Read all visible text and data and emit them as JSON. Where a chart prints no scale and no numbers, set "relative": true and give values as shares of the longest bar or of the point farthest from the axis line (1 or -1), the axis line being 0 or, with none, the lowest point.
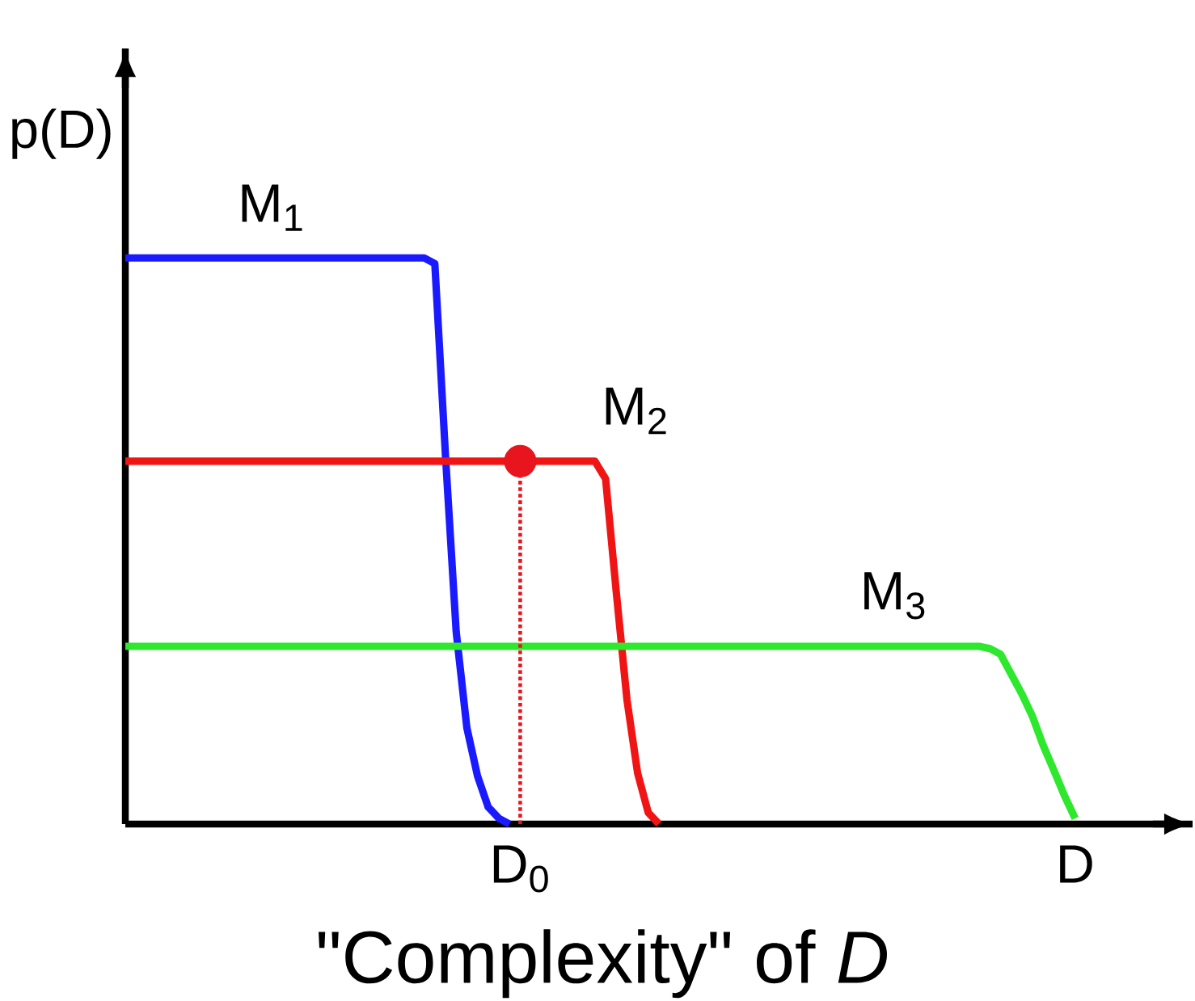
{
  "chart_data": {
    "type": "line",
    "relative": true,
    "marker": "none",
    "line_style": "solid",
    "xlabel": "\"Complexity\" of *D*",
    "ylabel": "p(D)",
    "categories": [
      null,
      null,
      null,
      null,
      null,
      null,
      null,
      null,
      null,
      null,
      null,
      null,
      null,
      null,
      null,
      null,
      null,
      null,
      null,
      null,
      null,
      null,
      null,
      null,
      null,
      null,
      null,
      null,
      null,
      null,
      null,
      null,
      null,
      null,
      null,
      null,
      null,
      "D$_{0}$",
      null,
      null,
      null,
      null,
      null,
      null,
      null,
      null,
      null,
      null,
      null,
      null,
      null,
      null,
      null,
      null,
      null,
      null,
      null,
      null,
      null,
      null,
      null,
      null,
      null,
      null,
      null,
      null,
      null,
      null,
      null,
      null,
      null,
      null,
      null,
      null,
      null,
      null,
      null,
      null,
      null,
      null,
      null,
      null,
      null,
      null,
      null,
      null,
      null,
      null,
      null,
      "D",
      null,
      null,
      null,
      null,
      null,
      null,
      null,
      null,
      null,
      null,
      null
    ],
    "series": [
      {
        "name": "M$_{1}$",
        "color": "#1a1aff",
        "values": [
          1,
          1,
          1,
          1,
          1,
          1,
          1,
          1,
          1,
          1,
          1,
          1,
          1,
          1,
          1,
          1,
          1,
          1,
          1,
          1,
          1,
          1,
          1,
          1,
          1,
          1,
          1,
          1,
          1,
          0.99,
          0.65,
          0.34,
          0.17,
          0.085,
          0.03,
          0.01,
          0,
          null,
          null,
          null,
          null,
          null,
          null,
          null,
          null,
          null,
          null,
          null,
          null,
          null,
          null,
          null,
          null,
          null,
          null,
          null,
          null,
          null,
          null,
          null,
          null,
          null,
          null,
          null,
          null,
          null,
          null,
          null,
          null,
          null,
          null,
          null,
          null,
          null,
          null,
          null,
          null,
          null,
          null,
          null,
          null,
          null,
          null,
          null,
          null,
          null,
          null,
          null,
          null,
          null,
          null,
          null,
          null,
          null,
          null,
          null,
          null,
          null,
          null,
          null,
          null
        ]
      },
      {
        "name": "M$_{2}$",
        "color": "#f01515",
        "values": [
          0.641,
          0.641,
          0.641,
          0.641,
          0.641,
          0.641,
          0.641,
          0.641,
          0.641,
          0.641,
          0.641,
          0.641,
          0.641,
          0.641,
          0.641,
          0.641,
          0.641,
          0.641,
          0.641,
          0.641,
          0.641,
          0.641,
          0.641,
          0.641,
          0.641,
          0.641,
          0.641,
          0.641,
          0.641,
          0.641,
          0.641,
          0.641,
          0.641,
          0.641,
          0.641,
          0.641,
          0.641,
          0.641,
          0.641,
          0.641,
          0.641,
          0.641,
          0.641,
          0.641,
          0.641,
          0.61,
          0.41,
          0.22,
          0.09,
          0.02,
          0,
          null,
          null,
          null,
          null,
          null,
          null,
          null,
          null,
          null,
          null,
          null,
          null,
          null,
          null,
          null,
          null,
          null,
          null,
          null,
          null,
          null,
          null,
          null,
          null,
          null,
          null,
          null,
          null,
          null,
          null,
          null,
          null,
          null,
          null,
          null,
          null,
          null,
          null,
          null,
          null,
          null,
          null,
          null,
          null,
          null,
          null,
          null,
          null,
          null,
          null
        ]
      },
      {
        "name": "M$_{3}$",
        "color": "#2ee82e",
        "values": [
          0.314,
          0.314,
          0.314,
          0.314,
          0.314,
          0.314,
          0.314,
          0.314,
          0.314,
          0.314,
          0.314,
          0.314,
          0.314,
          0.314,
          0.314,
          0.314,
          0.314,
          0.314,
          0.314,
          0.314,
          0.314,
          0.314,
          0.314,
          0.314,
          0.314,
          0.314,
          0.314,
          0.314,
          0.314,
          0.314,
          0.314,
          0.314,
          0.314,
          0.314,
          0.314,
          0.314,
          0.314,
          0.314,
          0.314,
          0.314,
          0.314,
          0.314,
          0.314,
          0.314,
          0.314,
          0.314,
          0.314,
          0.314,
          0.314,
          0.314,
          0.314,
          0.314,
          0.314,
          0.314,
          0.314,
          0.314,
          0.314,
          0.314,
          0.314,
          0.314,
          0.314,
          0.314,
          0.314,
          0.314,
          0.314,
          0.314,
          0.314,
          0.314,
          0.314,
          0.314,
          0.314,
          0.314,
          0.314,
          0.314,
          0.314,
          0.314,
          0.314,
          0.314,
          0.314,
          0.314,
          0.314,
          0.31,
          0.3,
          0.265,
          0.23,
          0.19,
          0.139,
          0.095,
          0.05,
          0.01,
          null,
          null,
          null,
          null,
          null,
          null,
          null,
          null,
          null,
          null,
          null
        ]
      },
      {
        "type": "lollipop",
        "line_style": "dotted",
        "color": "#e8141e",
        "values": [
          null,
          null,
          null,
          null,
          null,
          null,
          null,
          null,
          null,
          null,
          null,
          null,
          null,
          null,
          null,
          null,
          null,
          null,
          null,
          null,
          null,
          null,
          null,
          null,
          null,
          null,
          null,
          null,
          null,
          null,
          null,
          null,
          null,
          null,
          null,
          null,
          null,
          0.641,
          null,
          null,
          null,
          null,
          null,
          null,
          null,
          null,
          null,
          null,
          null,
          null,
          null,
          null,
          null,
          null,
          null,
          null,
          null,
          null,
          null,
          null,
          null,
          null,
          null,
          null,
          null,
          null,
          null,
          null,
          null,
          null,
          null,
          null,
          null,
          null,
          null,
          null,
          null,
          null,
          null,
          null,
          null,
          null,
          null,
          null,
          null,
          null,
          null,
          null,
          null,
          null,
          null,
          null,
          null,
          null,
          null,
          null,
          null,
          null,
          null,
          null,
          null
        ]
      }
    ]
  }
}
